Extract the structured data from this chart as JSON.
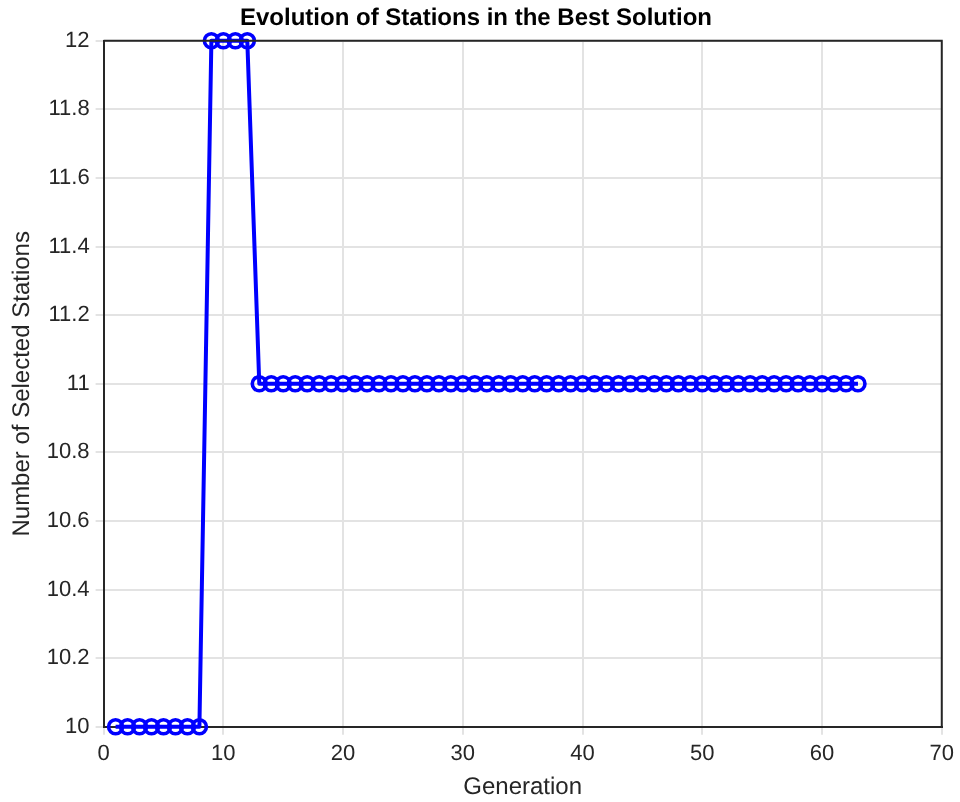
{
  "chart_data": {
    "type": "line",
    "title": "Evolution of Stations in the Best Solution",
    "xlabel": "Generation",
    "ylabel": "Number of Selected Stations",
    "x": [
      1,
      2,
      3,
      4,
      5,
      6,
      7,
      8,
      9,
      10,
      11,
      12,
      13,
      14,
      15,
      16,
      17,
      18,
      19,
      20,
      21,
      22,
      23,
      24,
      25,
      26,
      27,
      28,
      29,
      30,
      31,
      32,
      33,
      34,
      35,
      36,
      37,
      38,
      39,
      40,
      41,
      42,
      43,
      44,
      45,
      46,
      47,
      48,
      49,
      50,
      51,
      52,
      53,
      54,
      55,
      56,
      57,
      58,
      59,
      60,
      61,
      62,
      63
    ],
    "series": [
      {
        "color": "#0000ff",
        "values": [
          10,
          10,
          10,
          10,
          10,
          10,
          10,
          10,
          12,
          12,
          12,
          12,
          11,
          11,
          11,
          11,
          11,
          11,
          11,
          11,
          11,
          11,
          11,
          11,
          11,
          11,
          11,
          11,
          11,
          11,
          11,
          11,
          11,
          11,
          11,
          11,
          11,
          11,
          11,
          11,
          11,
          11,
          11,
          11,
          11,
          11,
          11,
          11,
          11,
          11,
          11,
          11,
          11,
          11,
          11,
          11,
          11,
          11,
          11,
          11,
          11,
          11,
          11
        ]
      }
    ],
    "xlim": [
      0,
      70
    ],
    "xticks": [
      0,
      10,
      20,
      30,
      40,
      50,
      60,
      70
    ],
    "ylim": [
      10,
      12
    ],
    "yticks": [
      10,
      10.2,
      10.4,
      10.6,
      10.8,
      11,
      11.2,
      11.4,
      11.6,
      11.8,
      12
    ],
    "grid": true,
    "legend": false,
    "marker": "circle",
    "line_style": "solid"
  }
}
